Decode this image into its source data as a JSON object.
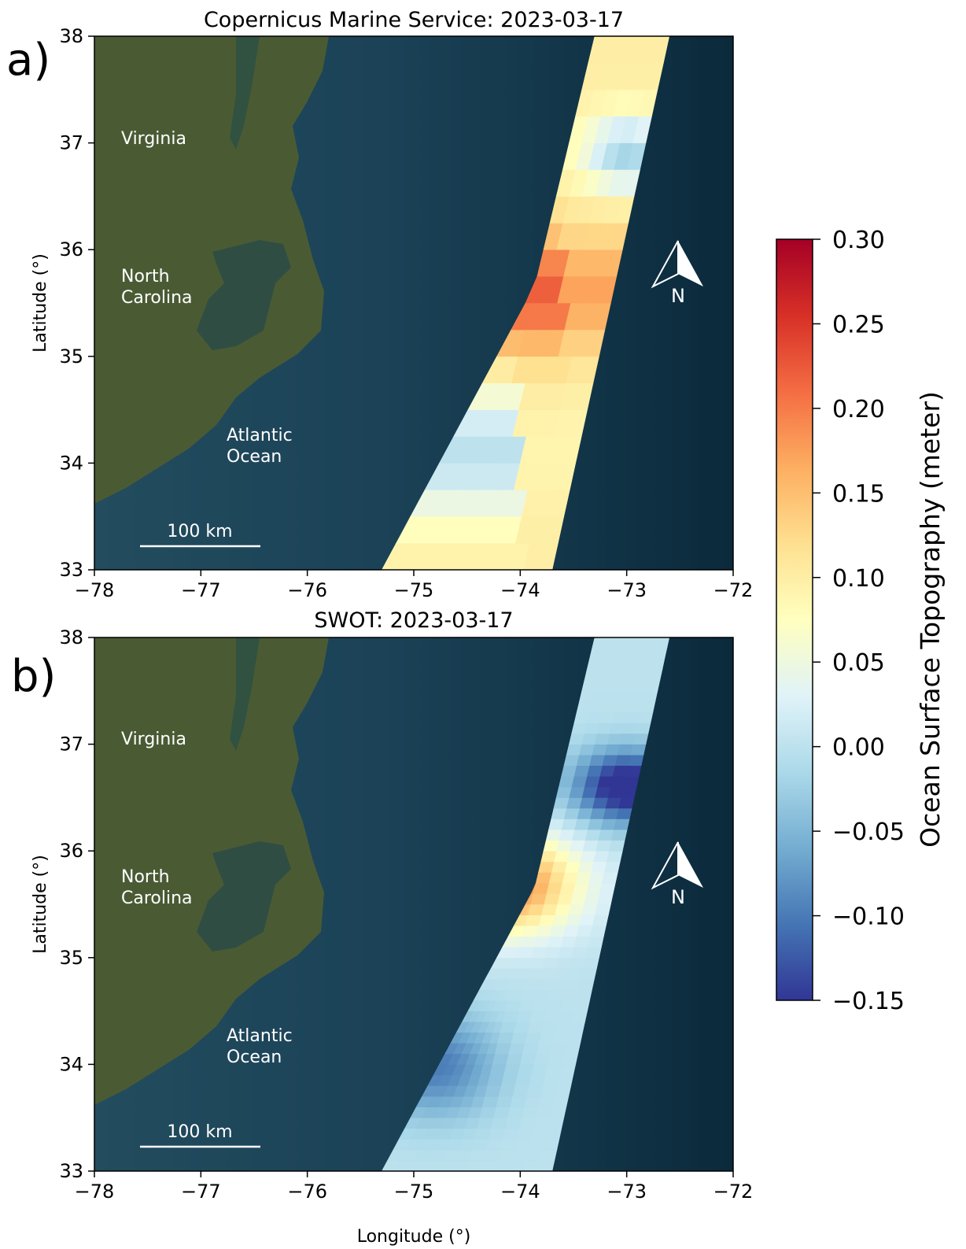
{
  "panels": [
    {
      "letter": "a)",
      "title": "Copernicus Marine Service: 2023-03-17",
      "ylabel": "Latitude (°)",
      "xlabel": "",
      "scalebar": "100 km",
      "north": "N",
      "labels": [
        "Virginia",
        "North Carolina",
        "Atlantic Ocean"
      ],
      "source": "Copernicus Marine Service"
    },
    {
      "letter": "b)",
      "title": "SWOT: 2023-03-17",
      "ylabel": "Latitude (°)",
      "xlabel": "Longitude (°)",
      "scalebar": "100 km",
      "north": "N",
      "labels": [
        "Virginia",
        "North Carolina",
        "Atlantic Ocean"
      ],
      "source": "SWOT"
    }
  ],
  "colorbar": {
    "label": "Ocean Surface Topography (meter)",
    "min": -0.15,
    "max": 0.3,
    "ticks": [
      "0.30",
      "0.25",
      "0.20",
      "0.15",
      "0.10",
      "0.05",
      "0.00",
      "−0.05",
      "−0.10",
      "−0.15"
    ],
    "colors": [
      "#313695",
      "#4575b4",
      "#74add1",
      "#abd9e9",
      "#e0f3f8",
      "#ffffbf",
      "#fee090",
      "#fdae61",
      "#f46d43",
      "#d73027",
      "#a50026"
    ]
  },
  "chart_data": {
    "type": "heatmap",
    "xlim": [
      -78,
      -72
    ],
    "ylim": [
      33,
      38
    ],
    "xticks": [
      "−78",
      "−77",
      "−76",
      "−75",
      "−74",
      "−73",
      "−72"
    ],
    "yticks": [
      "33",
      "34",
      "35",
      "36",
      "37",
      "38"
    ],
    "swaths_lon_at_lat": {
      "lat": [
        33,
        38
      ],
      "track_1_edges": [
        [
          -75.3,
          -74.5
        ],
        [
          -72.6,
          -73.3
        ]
      ],
      "track_2_edges": [
        [
          -74.5,
          -73.7
        ],
        [
          -73.3,
          -72.6
        ]
      ]
    }
  }
}
